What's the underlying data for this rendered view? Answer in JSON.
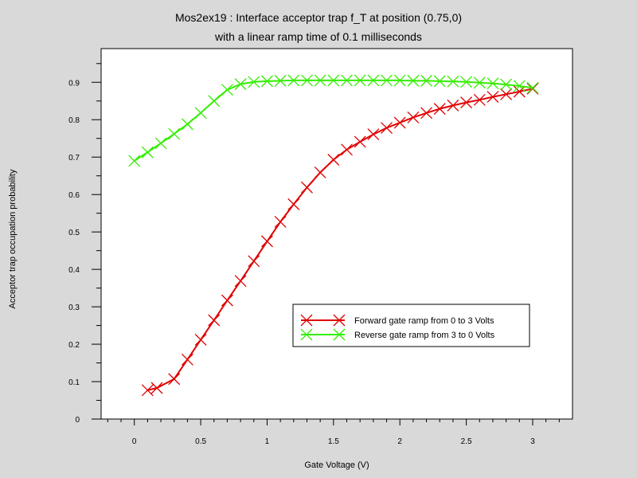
{
  "chart_data": {
    "type": "line",
    "title": "Mos2ex19 : Interface acceptor trap f_T at position (0.75,0)",
    "subtitle": "with a linear ramp time of 0.1 milliseconds",
    "xlabel": "Gate Voltage (V)",
    "ylabel": "Acceptor trap occupation probability",
    "xlim": [
      -0.25,
      3.3
    ],
    "ylim": [
      0,
      0.99
    ],
    "xticks": [
      "0",
      "0.5",
      "1",
      "1.5",
      "2",
      "2.5",
      "3"
    ],
    "yticks": [
      "0",
      "0.1",
      "0.2",
      "0.3",
      "0.4",
      "0.5",
      "0.6",
      "0.7",
      "0.8",
      "0.9"
    ],
    "grid": false,
    "legend_position": "lower-right",
    "series": [
      {
        "name": "Forward gate ramp from 0 to 3 Volts",
        "color": "#e00000",
        "marker": "x",
        "x": [
          0.1,
          0.17,
          0.3,
          0.4,
          0.5,
          0.6,
          0.7,
          0.8,
          0.9,
          1.0,
          1.1,
          1.2,
          1.3,
          1.4,
          1.5,
          1.6,
          1.7,
          1.8,
          1.9,
          2.0,
          2.1,
          2.2,
          2.3,
          2.4,
          2.5,
          2.6,
          2.7,
          2.8,
          2.9,
          3.0
        ],
        "y": [
          0.077,
          0.083,
          0.107,
          0.159,
          0.212,
          0.264,
          0.317,
          0.369,
          0.422,
          0.475,
          0.527,
          0.574,
          0.619,
          0.659,
          0.693,
          0.72,
          0.741,
          0.761,
          0.778,
          0.792,
          0.806,
          0.818,
          0.829,
          0.838,
          0.846,
          0.853,
          0.861,
          0.868,
          0.875,
          0.883
        ]
      },
      {
        "name": "Reverse gate ramp from 3 to 0 Volts",
        "color": "#33ee00",
        "marker": "x",
        "x": [
          3.0,
          2.9,
          2.8,
          2.7,
          2.6,
          2.5,
          2.4,
          2.3,
          2.2,
          2.1,
          2.0,
          1.9,
          1.8,
          1.7,
          1.6,
          1.5,
          1.4,
          1.3,
          1.2,
          1.1,
          1.0,
          0.9,
          0.8,
          0.7,
          0.6,
          0.5,
          0.4,
          0.3,
          0.2,
          0.1,
          0.0
        ],
        "y": [
          0.885,
          0.89,
          0.894,
          0.897,
          0.899,
          0.901,
          0.902,
          0.903,
          0.904,
          0.904,
          0.905,
          0.905,
          0.905,
          0.905,
          0.905,
          0.905,
          0.905,
          0.905,
          0.905,
          0.904,
          0.903,
          0.901,
          0.895,
          0.88,
          0.85,
          0.818,
          0.788,
          0.762,
          0.737,
          0.713,
          0.69
        ]
      }
    ]
  }
}
